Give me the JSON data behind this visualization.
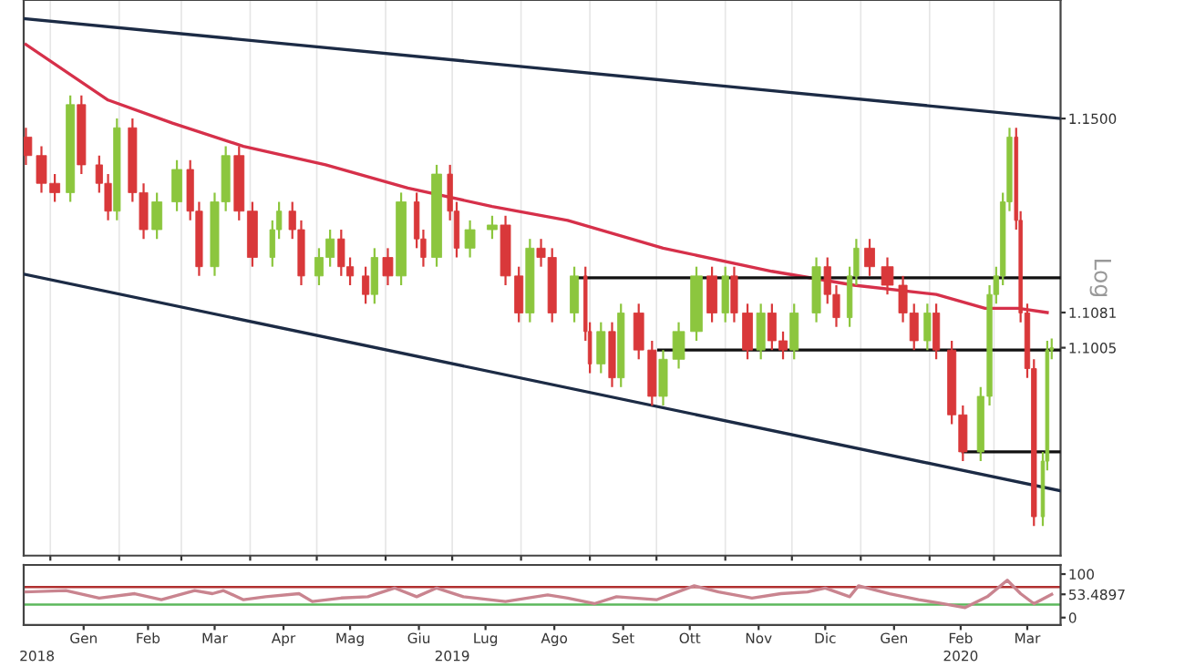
{
  "chart_data": [
    {
      "type": "candlestick",
      "x": [
        "2018-12-21",
        "2018-12-28",
        "2019-01-03",
        "2019-01-10",
        "2019-01-15",
        "2019-01-23",
        "2019-01-27",
        "2019-01-31",
        "2019-02-07",
        "2019-02-12",
        "2019-02-18",
        "2019-02-27",
        "2019-03-05",
        "2019-03-09",
        "2019-03-16",
        "2019-03-21",
        "2019-03-27",
        "2019-04-02",
        "2019-04-11",
        "2019-04-14",
        "2019-04-20",
        "2019-04-24",
        "2019-05-02",
        "2019-05-07",
        "2019-05-12",
        "2019-05-16",
        "2019-05-23",
        "2019-05-27",
        "2019-06-02",
        "2019-06-08",
        "2019-06-15",
        "2019-06-18",
        "2019-06-24",
        "2019-06-30",
        "2019-07-03",
        "2019-07-09",
        "2019-07-19",
        "2019-07-25",
        "2019-07-31",
        "2019-08-05",
        "2019-08-10",
        "2019-08-15",
        "2019-08-25",
        "2019-08-30",
        "2019-09-01",
        "2019-09-06",
        "2019-09-11",
        "2019-09-15",
        "2019-09-23",
        "2019-09-29",
        "2019-10-04",
        "2019-10-11",
        "2019-10-19",
        "2019-10-26",
        "2019-11-01",
        "2019-11-05",
        "2019-11-11",
        "2019-11-17",
        "2019-11-22",
        "2019-11-27",
        "2019-12-02",
        "2019-12-12",
        "2019-12-17",
        "2019-12-21",
        "2019-12-27",
        "2019-12-30",
        "2020-01-05",
        "2020-01-13",
        "2020-01-20",
        "2020-01-25",
        "2020-01-31",
        "2020-02-04",
        "2020-02-11",
        "2020-02-16",
        "2020-02-24",
        "2020-02-28",
        "2020-03-02",
        "2020-03-05",
        "2020-03-08",
        "2020-03-11",
        "2020-03-13",
        "2020-03-16",
        "2020-03-19",
        "2020-03-23",
        "2020-03-25",
        "2020-03-27"
      ],
      "ohlc": [
        [
          1.146,
          1.148,
          1.14,
          1.142
        ],
        [
          1.142,
          1.144,
          1.134,
          1.136
        ],
        [
          1.136,
          1.138,
          1.132,
          1.134
        ],
        [
          1.134,
          1.155,
          1.132,
          1.153
        ],
        [
          1.153,
          1.155,
          1.138,
          1.14
        ],
        [
          1.14,
          1.142,
          1.134,
          1.136
        ],
        [
          1.136,
          1.138,
          1.128,
          1.13
        ],
        [
          1.13,
          1.15,
          1.128,
          1.148
        ],
        [
          1.148,
          1.15,
          1.132,
          1.134
        ],
        [
          1.134,
          1.136,
          1.124,
          1.126
        ],
        [
          1.126,
          1.134,
          1.124,
          1.132
        ],
        [
          1.132,
          1.141,
          1.13,
          1.139
        ],
        [
          1.139,
          1.141,
          1.128,
          1.13
        ],
        [
          1.13,
          1.132,
          1.116,
          1.118
        ],
        [
          1.118,
          1.134,
          1.116,
          1.132
        ],
        [
          1.132,
          1.144,
          1.13,
          1.142
        ],
        [
          1.142,
          1.144,
          1.128,
          1.13
        ],
        [
          1.13,
          1.132,
          1.118,
          1.12
        ],
        [
          1.12,
          1.128,
          1.118,
          1.126
        ],
        [
          1.126,
          1.132,
          1.124,
          1.13
        ],
        [
          1.13,
          1.132,
          1.124,
          1.126
        ],
        [
          1.126,
          1.128,
          1.114,
          1.116
        ],
        [
          1.116,
          1.122,
          1.114,
          1.12
        ],
        [
          1.12,
          1.126,
          1.118,
          1.124
        ],
        [
          1.124,
          1.126,
          1.116,
          1.118
        ],
        [
          1.118,
          1.12,
          1.114,
          1.116
        ],
        [
          1.116,
          1.118,
          1.11,
          1.112
        ],
        [
          1.112,
          1.122,
          1.11,
          1.12
        ],
        [
          1.12,
          1.122,
          1.114,
          1.116
        ],
        [
          1.116,
          1.134,
          1.114,
          1.132
        ],
        [
          1.132,
          1.134,
          1.122,
          1.124
        ],
        [
          1.124,
          1.126,
          1.118,
          1.12
        ],
        [
          1.12,
          1.14,
          1.118,
          1.138
        ],
        [
          1.138,
          1.14,
          1.128,
          1.13
        ],
        [
          1.13,
          1.132,
          1.12,
          1.122
        ],
        [
          1.122,
          1.128,
          1.12,
          1.126
        ],
        [
          1.126,
          1.129,
          1.124,
          1.127
        ],
        [
          1.127,
          1.129,
          1.114,
          1.116
        ],
        [
          1.116,
          1.118,
          1.106,
          1.108
        ],
        [
          1.108,
          1.124,
          1.106,
          1.122
        ],
        [
          1.122,
          1.124,
          1.118,
          1.12
        ],
        [
          1.12,
          1.122,
          1.106,
          1.108
        ],
        [
          1.108,
          1.118,
          1.106,
          1.116
        ],
        [
          1.116,
          1.118,
          1.102,
          1.104
        ],
        [
          1.104,
          1.106,
          1.095,
          1.097
        ],
        [
          1.097,
          1.106,
          1.095,
          1.104
        ],
        [
          1.104,
          1.106,
          1.092,
          1.094
        ],
        [
          1.094,
          1.11,
          1.092,
          1.108
        ],
        [
          1.108,
          1.11,
          1.098,
          1.1
        ],
        [
          1.1,
          1.102,
          1.088,
          1.09
        ],
        [
          1.09,
          1.1,
          1.088,
          1.098
        ],
        [
          1.098,
          1.106,
          1.096,
          1.104
        ],
        [
          1.104,
          1.118,
          1.102,
          1.116
        ],
        [
          1.116,
          1.118,
          1.106,
          1.108
        ],
        [
          1.108,
          1.118,
          1.106,
          1.116
        ],
        [
          1.116,
          1.118,
          1.106,
          1.108
        ],
        [
          1.108,
          1.11,
          1.098,
          1.1
        ],
        [
          1.1,
          1.11,
          1.098,
          1.108
        ],
        [
          1.108,
          1.11,
          1.1,
          1.102
        ],
        [
          1.102,
          1.104,
          1.098,
          1.1
        ],
        [
          1.1,
          1.11,
          1.098,
          1.108
        ],
        [
          1.108,
          1.12,
          1.106,
          1.118
        ],
        [
          1.118,
          1.12,
          1.11,
          1.112
        ],
        [
          1.112,
          1.114,
          1.105,
          1.107
        ],
        [
          1.107,
          1.118,
          1.105,
          1.116
        ],
        [
          1.116,
          1.124,
          1.114,
          1.122
        ],
        [
          1.122,
          1.124,
          1.116,
          1.118
        ],
        [
          1.118,
          1.12,
          1.112,
          1.114
        ],
        [
          1.114,
          1.116,
          1.106,
          1.108
        ],
        [
          1.108,
          1.11,
          1.1,
          1.102
        ],
        [
          1.102,
          1.11,
          1.1,
          1.108
        ],
        [
          1.108,
          1.11,
          1.098,
          1.1
        ],
        [
          1.1,
          1.102,
          1.084,
          1.086
        ],
        [
          1.086,
          1.088,
          1.076,
          1.078
        ],
        [
          1.078,
          1.092,
          1.076,
          1.09
        ],
        [
          1.09,
          1.114,
          1.088,
          1.112
        ],
        [
          1.112,
          1.118,
          1.11,
          1.116
        ],
        [
          1.116,
          1.134,
          1.114,
          1.132
        ],
        [
          1.132,
          1.148,
          1.13,
          1.146
        ],
        [
          1.146,
          1.148,
          1.126,
          1.128
        ],
        [
          1.128,
          1.13,
          1.106,
          1.108
        ],
        [
          1.108,
          1.11,
          1.094,
          1.096
        ],
        [
          1.096,
          1.098,
          1.062,
          1.064
        ],
        [
          1.064,
          1.078,
          1.062,
          1.076
        ],
        [
          1.076,
          1.102,
          1.074,
          1.1
        ],
        [
          1.1,
          1.1025,
          1.098,
          1.1005
        ]
      ],
      "colors": [
        "#d9383a",
        "#d9383a",
        "#d9383a",
        "#8cc63e",
        "#d9383a",
        "#d9383a",
        "#d9383a",
        "#8cc63e",
        "#d9383a",
        "#d9383a",
        "#8cc63e",
        "#8cc63e",
        "#d9383a",
        "#d9383a",
        "#8cc63e",
        "#8cc63e",
        "#d9383a",
        "#d9383a",
        "#8cc63e",
        "#8cc63e",
        "#d9383a",
        "#d9383a",
        "#8cc63e",
        "#8cc63e",
        "#d9383a",
        "#d9383a",
        "#d9383a",
        "#8cc63e",
        "#d9383a",
        "#8cc63e",
        "#d9383a",
        "#d9383a",
        "#8cc63e",
        "#d9383a",
        "#d9383a",
        "#8cc63e",
        "#8cc63e",
        "#d9383a",
        "#d9383a",
        "#8cc63e",
        "#d9383a",
        "#d9383a",
        "#8cc63e",
        "#d9383a",
        "#d9383a",
        "#8cc63e",
        "#d9383a",
        "#8cc63e",
        "#d9383a",
        "#d9383a",
        "#8cc63e",
        "#8cc63e",
        "#8cc63e",
        "#d9383a",
        "#8cc63e",
        "#d9383a",
        "#d9383a",
        "#8cc63e",
        "#d9383a",
        "#d9383a",
        "#8cc63e",
        "#8cc63e",
        "#d9383a",
        "#d9383a",
        "#8cc63e",
        "#8cc63e",
        "#d9383a",
        "#d9383a",
        "#d9383a",
        "#d9383a",
        "#8cc63e",
        "#d9383a",
        "#d9383a",
        "#d9383a",
        "#8cc63e",
        "#8cc63e",
        "#8cc63e",
        "#8cc63e",
        "#8cc63e",
        "#d9383a",
        "#d9383a",
        "#d9383a",
        "#d9383a",
        "#8cc63e",
        "#8cc63e",
        "#8cc63e"
      ],
      "series": [
        {
          "type": "line",
          "color": "#d6304a",
          "x": [
            "2018-12-21",
            "2019-01-27",
            "2019-02-25",
            "2019-03-29",
            "2019-05-05",
            "2019-06-11",
            "2019-07-19",
            "2019-08-22",
            "2019-10-04",
            "2019-11-22",
            "2019-12-29",
            "2020-02-04",
            "2020-02-26",
            "2020-03-12",
            "2020-03-25"
          ],
          "values": [
            1.166,
            1.154,
            1.149,
            1.144,
            1.14,
            1.135,
            1.131,
            1.128,
            1.122,
            1.117,
            1.114,
            1.112,
            1.109,
            1.109,
            1.1081
          ]
        },
        {
          "type": "line",
          "color": "#1c2b45",
          "x": [
            "2018-12-20",
            "2020-03-31"
          ],
          "values": [
            1.1716,
            1.15
          ]
        },
        {
          "type": "line",
          "color": "#1c2b45",
          "x": [
            "2018-12-20",
            "2020-03-31"
          ],
          "values": [
            1.1164,
            1.0696
          ]
        },
        {
          "type": "line",
          "color": "#111111",
          "x": [
            "2019-08-25",
            "2020-03-31"
          ],
          "values": [
            1.1156,
            1.1156
          ]
        },
        {
          "type": "line",
          "color": "#111111",
          "x": [
            "2019-10-02",
            "2020-03-31"
          ],
          "values": [
            1.1,
            1.1
          ]
        },
        {
          "type": "line",
          "color": "#111111",
          "x": [
            "2020-02-16",
            "2020-03-31"
          ],
          "values": [
            1.078,
            1.078
          ]
        }
      ],
      "ylabel": "Log",
      "xlim": [
        "2018-12-20",
        "2020-03-31"
      ],
      "xticks": [
        {
          "value": "2019-01-01",
          "label": null
        },
        {
          "value": "2019-02-01",
          "label": null
        },
        {
          "value": "2019-03-01",
          "label": null
        },
        {
          "value": "2019-04-01",
          "label": null
        },
        {
          "value": "2019-05-01",
          "label": null
        },
        {
          "value": "2019-06-01",
          "label": null
        },
        {
          "value": "2019-07-01",
          "label": null
        },
        {
          "value": "2019-08-01",
          "label": null
        },
        {
          "value": "2019-09-01",
          "label": null
        },
        {
          "value": "2019-10-01",
          "label": null
        },
        {
          "value": "2019-11-01",
          "label": null
        },
        {
          "value": "2019-12-01",
          "label": null
        },
        {
          "value": "2020-01-01",
          "label": null
        },
        {
          "value": "2020-02-01",
          "label": null
        },
        {
          "value": "2020-03-01",
          "label": null
        }
      ],
      "ylim": [
        1.0556,
        1.1756
      ],
      "yticks": [
        {
          "value": 1.15,
          "label": "1.1500"
        },
        {
          "value": 1.1081,
          "label": "1.1081"
        },
        {
          "value": 1.1005,
          "label": "1.1005"
        }
      ],
      "grid": "x",
      "tick_labels": "y"
    },
    {
      "type": "line",
      "series": [
        {
          "color": "#c9848f",
          "x": [
            "2018-12-21",
            "2019-01-08",
            "2019-01-23",
            "2019-02-08",
            "2019-02-20",
            "2019-03-07",
            "2019-03-15",
            "2019-03-20",
            "2019-03-29",
            "2019-04-08",
            "2019-04-23",
            "2019-04-29",
            "2019-05-12",
            "2019-05-24",
            "2019-06-05",
            "2019-06-15",
            "2019-06-24",
            "2019-07-06",
            "2019-07-25",
            "2019-08-13",
            "2019-08-22",
            "2019-09-03",
            "2019-09-13",
            "2019-10-01",
            "2019-10-18",
            "2019-10-29",
            "2019-11-13",
            "2019-11-26",
            "2019-12-08",
            "2019-12-16",
            "2019-12-27",
            "2019-12-31",
            "2020-01-14",
            "2020-01-27",
            "2020-02-05",
            "2020-02-17",
            "2020-02-27",
            "2020-03-07",
            "2020-03-13",
            "2020-03-19",
            "2020-03-27"
          ],
          "values": [
            59,
            62,
            45,
            55,
            41,
            62,
            55,
            62,
            41,
            48,
            55,
            37,
            45,
            48,
            68,
            48,
            68,
            48,
            37,
            52,
            45,
            32,
            48,
            41,
            73,
            59,
            45,
            55,
            59,
            68,
            48,
            73,
            55,
            41,
            34,
            23,
            48,
            86,
            55,
            32,
            53.5
          ]
        }
      ],
      "ref_lines": [
        {
          "axis": "y",
          "value": 70,
          "color": "#b03030"
        },
        {
          "axis": "y",
          "value": 30,
          "color": "#5cb85c"
        }
      ],
      "xlim": [
        "2018-12-20",
        "2020-03-31"
      ],
      "xticks": [
        {
          "value": "2019-01-16",
          "label": "Gen"
        },
        {
          "value": "2019-02-14",
          "label": "Feb"
        },
        {
          "value": "2019-03-16",
          "label": "Mar"
        },
        {
          "value": "2019-04-16",
          "label": "Apr"
        },
        {
          "value": "2019-05-16",
          "label": "Mag"
        },
        {
          "value": "2019-06-16",
          "label": "Giu"
        },
        {
          "value": "2019-07-16",
          "label": "Lug"
        },
        {
          "value": "2019-08-16",
          "label": "Ago"
        },
        {
          "value": "2019-09-16",
          "label": "Set"
        },
        {
          "value": "2019-10-16",
          "label": "Ott"
        },
        {
          "value": "2019-11-16",
          "label": "Nov"
        },
        {
          "value": "2019-12-16",
          "label": "Dic"
        },
        {
          "value": "2020-01-16",
          "label": "Gen"
        },
        {
          "value": "2020-02-15",
          "label": "Feb"
        },
        {
          "value": "2020-03-16",
          "label": "Mar"
        }
      ],
      "x2lim": [
        "2018-12-20",
        "2020-03-31"
      ],
      "x2ticks": [
        {
          "value": "2018-12-26",
          "label": "2018"
        },
        {
          "value": "2019-07-01",
          "label": "2019"
        },
        {
          "value": "2020-02-15",
          "label": "2020"
        }
      ],
      "ylim": [
        -17,
        121
      ],
      "yticks": [
        100,
        0,
        {
          "value": 53.4897,
          "label": "53.4897"
        }
      ]
    }
  ]
}
